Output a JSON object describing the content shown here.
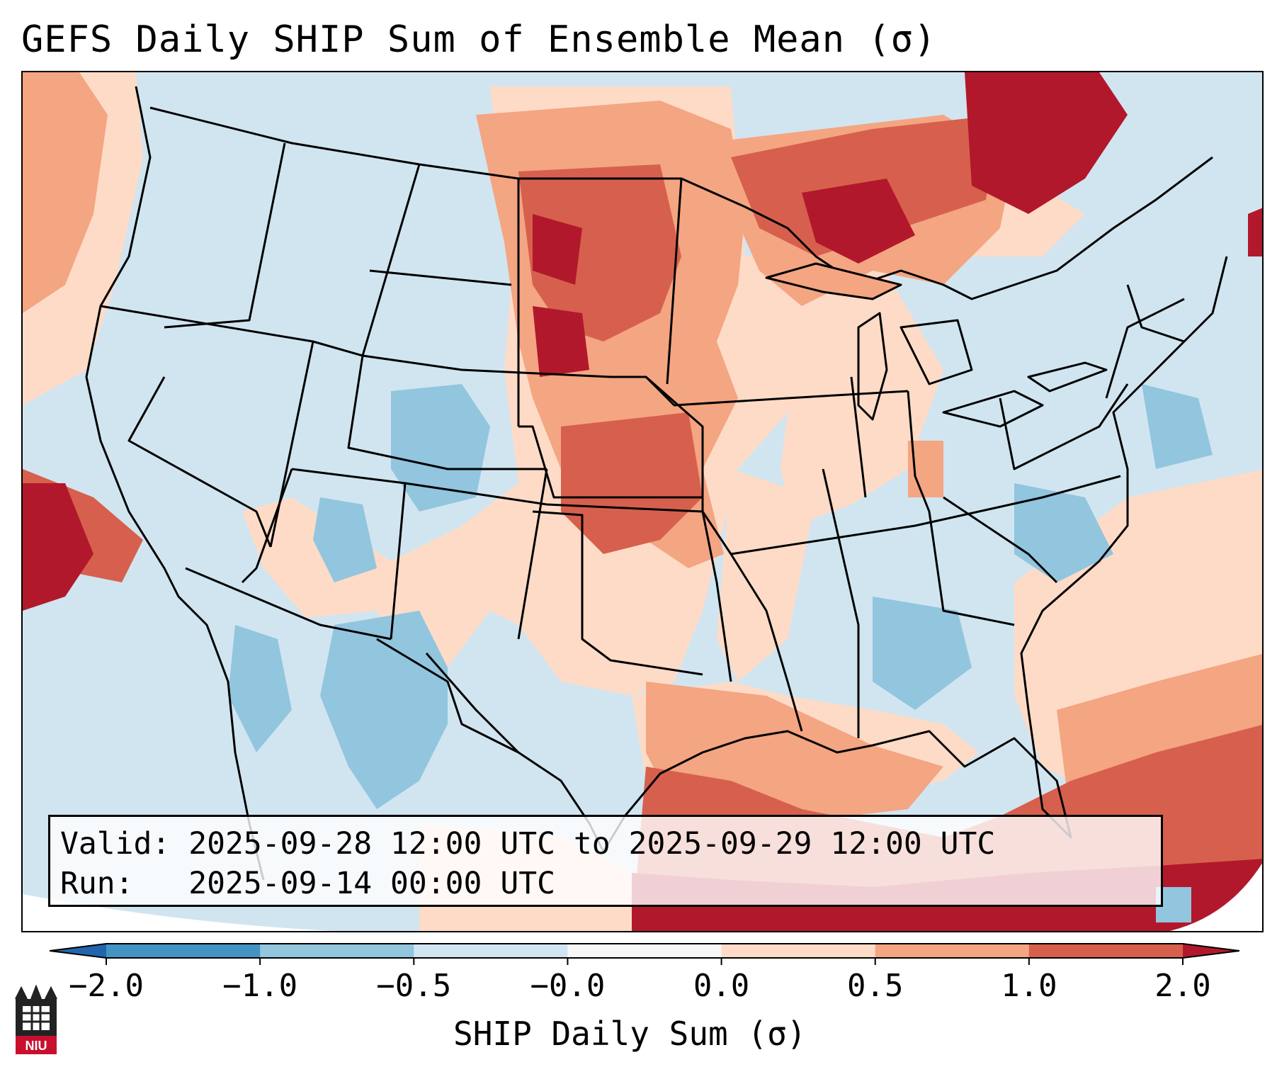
{
  "title": "GEFS Daily SHIP Sum of Ensemble Mean (σ)",
  "info": {
    "valid_label": "Valid:",
    "valid_value": "2025-09-28 12:00 UTC to 2025-09-29 12:00 UTC",
    "run_label": "Run:",
    "run_value": "2025-09-14 00:00 UTC"
  },
  "colorbar": {
    "label": "SHIP Daily Sum (σ)",
    "ticks": [
      "−2.0",
      "−1.0",
      "−0.5",
      "−0.0",
      "0.0",
      "0.5",
      "1.0",
      "2.0"
    ],
    "bins": [
      {
        "from": -2.0,
        "to": -1.0,
        "color": "#4393c3"
      },
      {
        "from": -1.0,
        "to": -0.5,
        "color": "#92c5de"
      },
      {
        "from": -0.5,
        "to": -0.0,
        "color": "#d1e5f0"
      },
      {
        "from": -0.0,
        "to": 0.0,
        "color": "#f7f7f7"
      },
      {
        "from": 0.0,
        "to": 0.5,
        "color": "#fddbc7"
      },
      {
        "from": 0.5,
        "to": 1.0,
        "color": "#f4a582"
      },
      {
        "from": 1.0,
        "to": 2.0,
        "color": "#d6604d"
      }
    ],
    "under_color": "#2166ac",
    "over_color": "#b2182b"
  },
  "logo": {
    "text": "NIU",
    "color": "#c8102e"
  }
}
